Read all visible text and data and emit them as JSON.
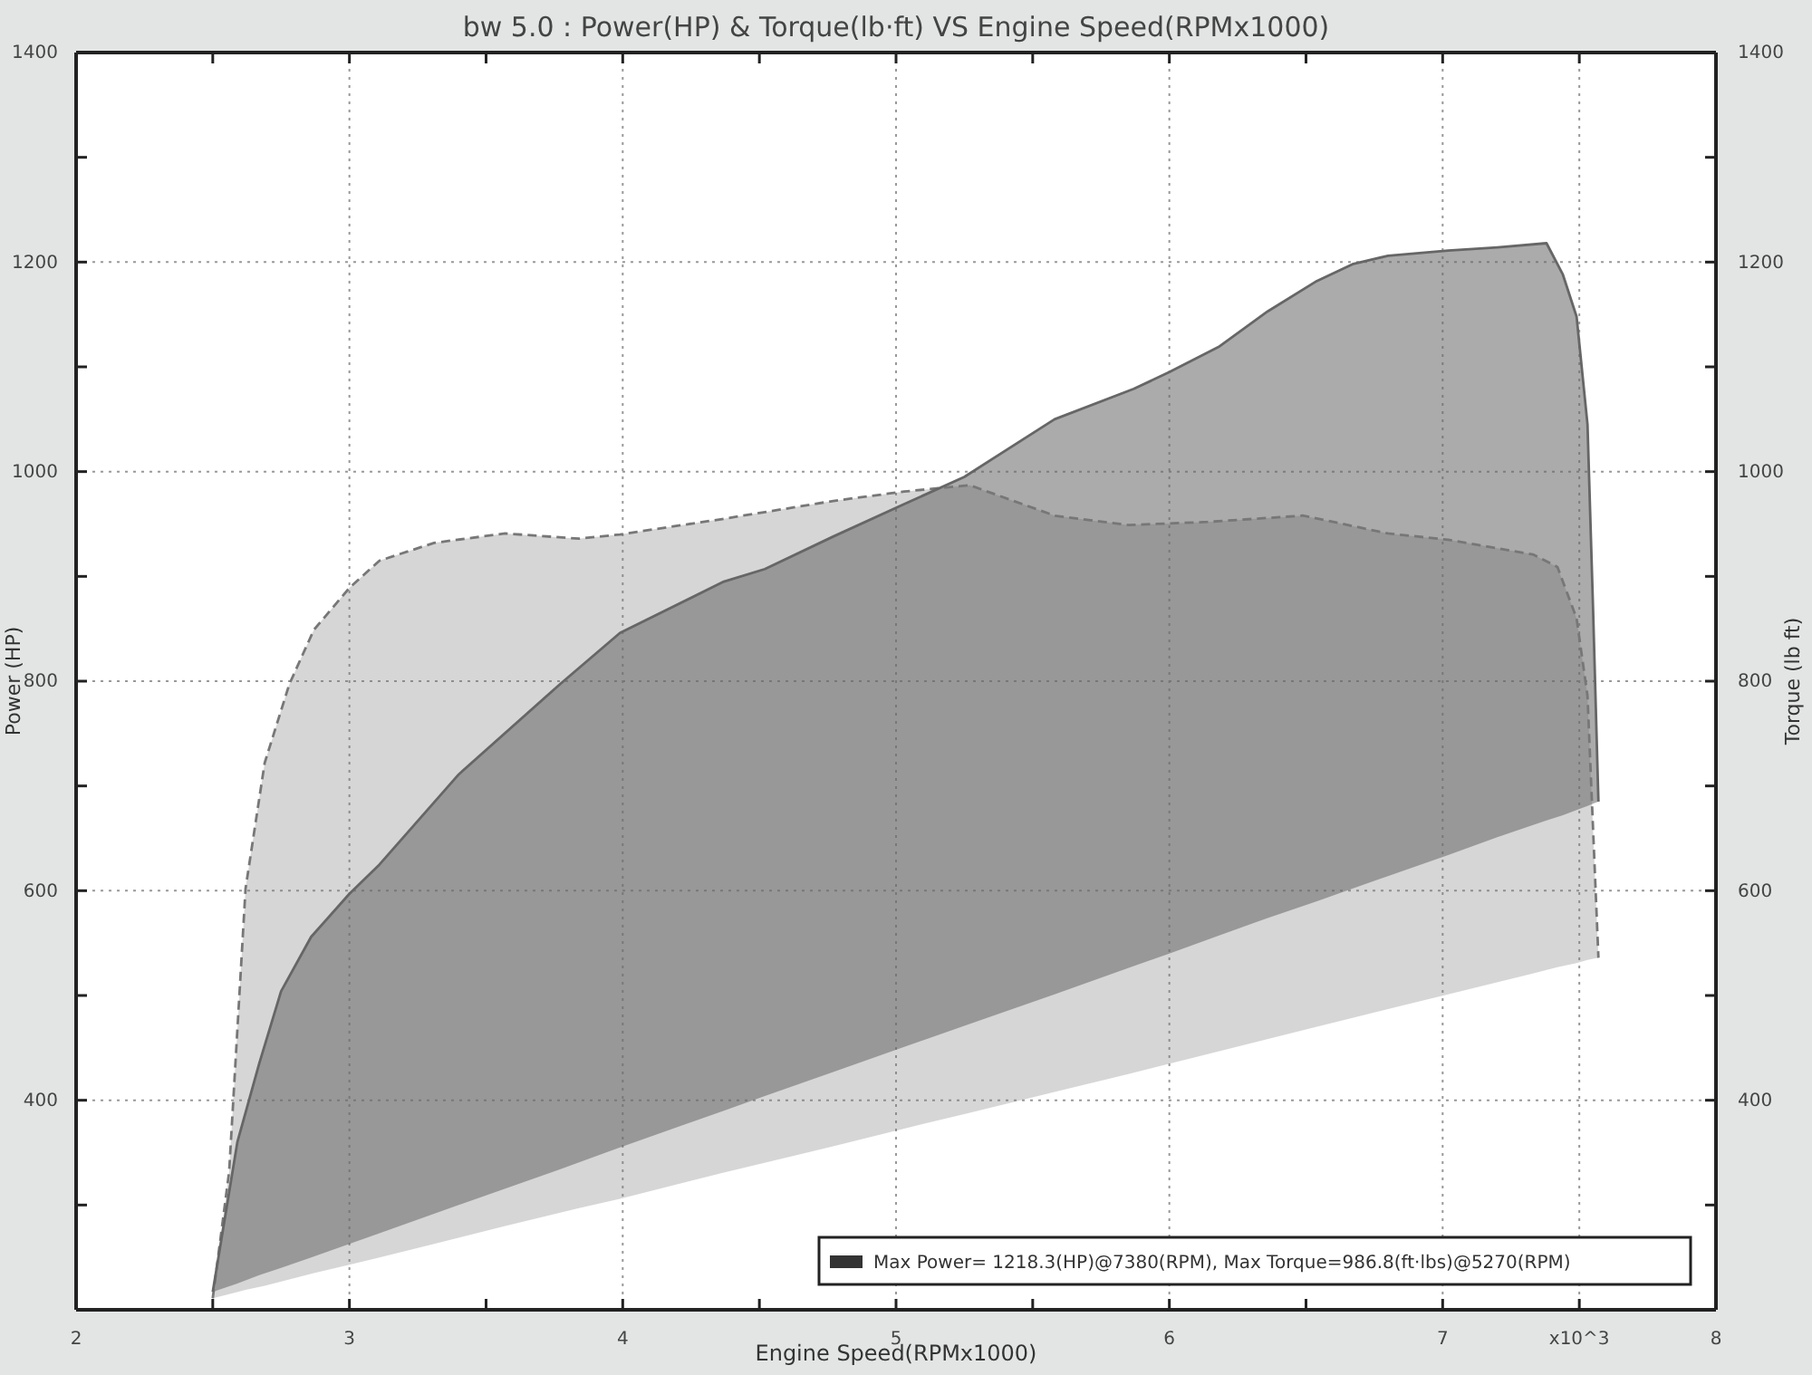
{
  "chart_data": {
    "type": "line",
    "title": "bw 5.0 : Power(HP) & Torque(lb·ft) VS Engine Speed(RPMx1000)",
    "xlabel": "Engine Speed(RPMx1000)",
    "ylabel": "Power (HP)",
    "y2label": "Torque (lb ft)",
    "xlim": [
      2,
      8
    ],
    "xticks": [
      2,
      {
        "value": 2.5,
        "label": null
      },
      3,
      {
        "value": 3.5,
        "label": null
      },
      4,
      {
        "value": 4.5,
        "label": null
      },
      5,
      {
        "value": 5.5,
        "label": null
      },
      6,
      {
        "value": 6.5,
        "label": null
      },
      7,
      {
        "value": 7.5,
        "label": "x10^3"
      },
      8
    ],
    "ylim": [
      200,
      1400
    ],
    "yticks": [
      {
        "value": 200,
        "label": null
      },
      {
        "value": 300,
        "label": null
      },
      400,
      {
        "value": 500,
        "label": null
      },
      600,
      {
        "value": 700,
        "label": null
      },
      800,
      {
        "value": 900,
        "label": null
      },
      1000,
      {
        "value": 1100,
        "label": null
      },
      1200,
      {
        "value": 1300,
        "label": null
      },
      1400
    ],
    "y2lim": [
      200,
      1400
    ],
    "y2ticks": [
      {
        "value": 200,
        "label": null
      },
      {
        "value": 300,
        "label": null
      },
      400,
      {
        "value": 500,
        "label": null
      },
      600,
      {
        "value": 700,
        "label": null
      },
      800,
      {
        "value": 900,
        "label": null
      },
      1000,
      {
        "value": 1100,
        "label": null
      },
      1200,
      {
        "value": 1300,
        "label": null
      },
      1400
    ],
    "grid": true,
    "legend": false,
    "annotations": [
      "Max Power= 1218.3(HP)@7380(RPM), Max Torque=986.8(ft·lbs)@5270(RPM)"
    ],
    "series": [
      {
        "color": "#777777",
        "line_style": "dashed",
        "axis": "y2",
        "x": [
          2.5,
          2.56,
          2.62,
          2.69,
          2.78,
          2.87,
          3.0,
          3.11,
          3.31,
          3.57,
          3.84,
          3.99,
          4.37,
          4.77,
          5.03,
          5.27,
          5.58,
          5.85,
          6.14,
          6.49,
          6.8,
          7.02,
          7.33,
          7.42,
          7.49,
          7.53,
          7.57
        ],
        "values": [
          211,
          332,
          602,
          722,
          797,
          849,
          889,
          915,
          932,
          941,
          936,
          940,
          955,
          972,
          981,
          987,
          958,
          949,
          952,
          958,
          941,
          935,
          921,
          909,
          860,
          786,
          536
        ],
        "lower": [
          211,
          215,
          219,
          223,
          229,
          235,
          243,
          250,
          263,
          280,
          297,
          306,
          331,
          356,
          373,
          388,
          408,
          425,
          444,
          467,
          487,
          501,
          521,
          527,
          531,
          534,
          536
        ],
        "upper": [
          211,
          332,
          602,
          722,
          797,
          849,
          889,
          915,
          932,
          941,
          936,
          940,
          955,
          972,
          981,
          987,
          958,
          949,
          952,
          958,
          941,
          935,
          921,
          909,
          860,
          786,
          536
        ]
      },
      {
        "color": "#666666",
        "line_style": "solid",
        "x": [
          2.5,
          2.59,
          2.67,
          2.75,
          2.86,
          3.0,
          3.11,
          3.4,
          3.77,
          3.99,
          4.37,
          4.52,
          4.77,
          5.03,
          5.25,
          5.58,
          5.87,
          6.0,
          6.18,
          6.36,
          6.54,
          6.67,
          6.8,
          7.02,
          7.2,
          7.38,
          7.44,
          7.49,
          7.53,
          7.55,
          7.57
        ],
        "values": [
          217,
          360,
          435,
          504,
          556,
          597,
          625,
          711,
          797,
          846,
          895,
          907,
          938,
          969,
          995,
          1050,
          1079,
          1095,
          1119,
          1153,
          1182,
          1198,
          1206,
          1211,
          1214,
          1218,
          1188,
          1148,
          1045,
          872,
          685
        ],
        "lower": [
          217,
          225,
          233,
          240,
          250,
          263,
          273,
          300,
          334,
          355,
          390,
          404,
          427,
          451,
          471,
          501,
          528,
          540,
          557,
          574,
          590,
          602,
          614,
          634,
          651,
          667,
          672,
          677,
          681,
          683,
          685
        ],
        "upper": [
          217,
          360,
          435,
          504,
          556,
          597,
          625,
          711,
          797,
          846,
          895,
          907,
          938,
          969,
          995,
          1050,
          1079,
          1095,
          1119,
          1153,
          1182,
          1198,
          1206,
          1211,
          1214,
          1218,
          1188,
          1148,
          1045,
          872,
          685
        ]
      }
    ]
  }
}
